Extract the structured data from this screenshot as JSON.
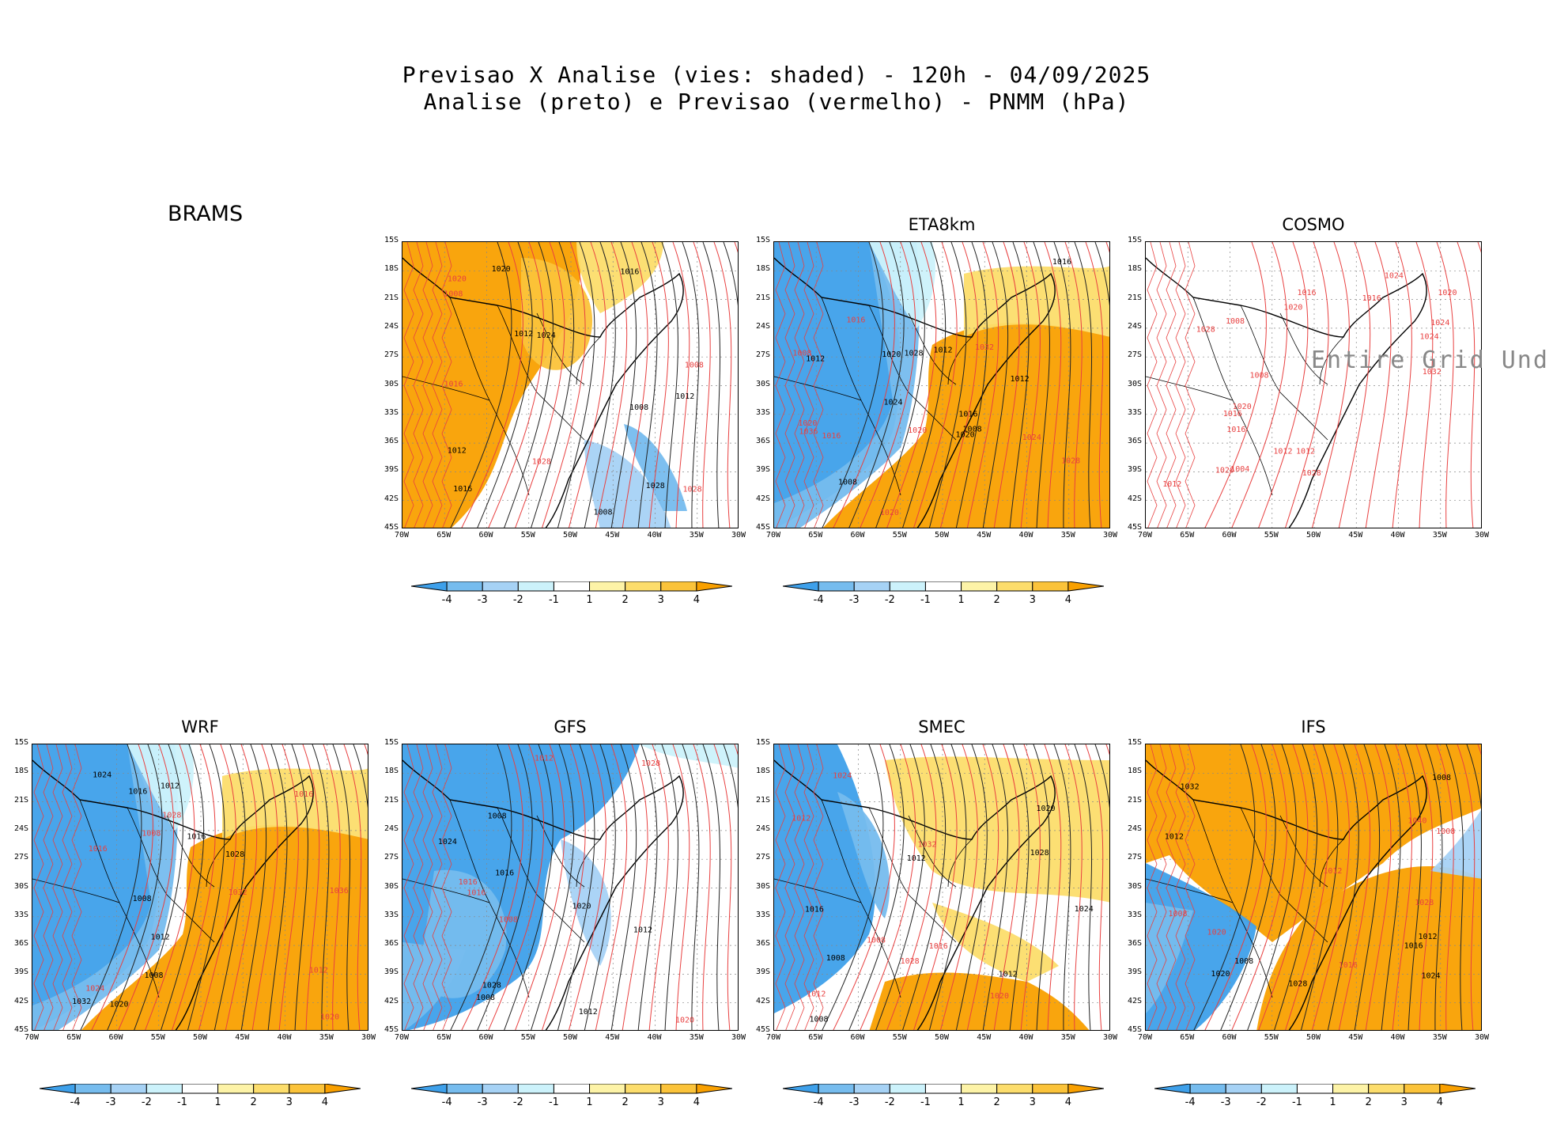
{
  "title_line1": "Previsao X Analise (vies: shaded) - 120h - 04/09/2025",
  "title_line2": "Analise (preto) e Previsao (vermelho) - PNMM (hPa)",
  "brams_label": "BRAMS",
  "lat_labels": [
    "15S",
    "18S",
    "21S",
    "24S",
    "27S",
    "30S",
    "33S",
    "36S",
    "39S",
    "42S",
    "45S"
  ],
  "lon_labels": [
    "70W",
    "65W",
    "60W",
    "55W",
    "50W",
    "45W",
    "40W",
    "35W",
    "30W"
  ],
  "colorbar_labels": [
    "-4",
    "-3",
    "-2",
    "-1",
    "1",
    "2",
    "3",
    "4"
  ],
  "colorbar_colors": [
    "#3ea0ea",
    "#76bcee",
    "#a6d2f5",
    "#ccf2fb",
    "#ffffff",
    "#fdf3a7",
    "#fcdd6c",
    "#fbc33a",
    "#f9a000"
  ],
  "panels": [
    {
      "id": "p-brams",
      "title": "",
      "row": 0,
      "col": 1,
      "kind": "warm-west",
      "labels_black": [
        "1008",
        "1012",
        "1016",
        "1020",
        "1024",
        "1028",
        "1012",
        "1016",
        "1012",
        "1008"
      ],
      "labels_red": [
        "1008",
        "1016",
        "1020",
        "1028",
        "1028",
        "1008"
      ]
    },
    {
      "id": "p-eta",
      "title": "ETA8km",
      "row": 0,
      "col": 2,
      "kind": "cold-west",
      "labels_black": [
        "1008",
        "1012",
        "1016",
        "1020",
        "1024",
        "1028",
        "1012",
        "1016",
        "1020",
        "1012",
        "1008"
      ],
      "labels_red": [
        "1008",
        "1016",
        "1020",
        "1024",
        "1028",
        "1032",
        "1036",
        "1020",
        "1016",
        "1020"
      ]
    },
    {
      "id": "p-cosmo",
      "title": "COSMO",
      "row": 0,
      "col": 3,
      "kind": "undef",
      "labels_black": [],
      "labels_red": [
        "1012",
        "1008",
        "1016",
        "1024",
        "1004",
        "1012",
        "1020",
        "1016",
        "1008",
        "1012",
        "1020",
        "1024",
        "1028",
        "1032",
        "1016",
        "1020",
        "1024",
        "1028",
        "1016",
        "1020"
      ]
    },
    {
      "id": "p-wrf",
      "title": "WRF",
      "row": 1,
      "col": 0,
      "kind": "cold-west",
      "labels_black": [
        "1008",
        "1012",
        "1016",
        "1020",
        "1024",
        "1028",
        "1032",
        "1012",
        "1008",
        "1016"
      ],
      "labels_red": [
        "1008",
        "1016",
        "1024",
        "1028",
        "1032",
        "1036",
        "1012",
        "1020",
        "1016"
      ]
    },
    {
      "id": "p-gfs",
      "title": "GFS",
      "row": 1,
      "col": 1,
      "kind": "gfs",
      "labels_black": [
        "1008",
        "1012",
        "1016",
        "1020",
        "1024",
        "1028",
        "1012",
        "1008"
      ],
      "labels_red": [
        "1008",
        "1016",
        "1012",
        "1028",
        "1016",
        "1020"
      ]
    },
    {
      "id": "p-smec",
      "title": "SMEC",
      "row": 1,
      "col": 2,
      "kind": "smec",
      "labels_black": [
        "1008",
        "1012",
        "1016",
        "1020",
        "1024",
        "1028",
        "1012",
        "1008"
      ],
      "labels_red": [
        "1008",
        "1012",
        "1016",
        "1020",
        "1024",
        "1028",
        "1032",
        "1012"
      ]
    },
    {
      "id": "p-ifs",
      "title": "IFS",
      "row": 1,
      "col": 3,
      "kind": "warm-east",
      "labels_black": [
        "1008",
        "1012",
        "1016",
        "1020",
        "1024",
        "1028",
        "1032",
        "1012",
        "1008"
      ],
      "labels_red": [
        "1008",
        "1012",
        "1016",
        "1020",
        "1028",
        "1040",
        "1008"
      ]
    }
  ],
  "cosmo_undefined_text": "Entire Grid Und",
  "colorbars": [
    {
      "id": "cb-brams"
    },
    {
      "id": "cb-eta"
    },
    {
      "id": "cb-wrf"
    },
    {
      "id": "cb-gfs"
    },
    {
      "id": "cb-smec"
    },
    {
      "id": "cb-ifs"
    }
  ]
}
